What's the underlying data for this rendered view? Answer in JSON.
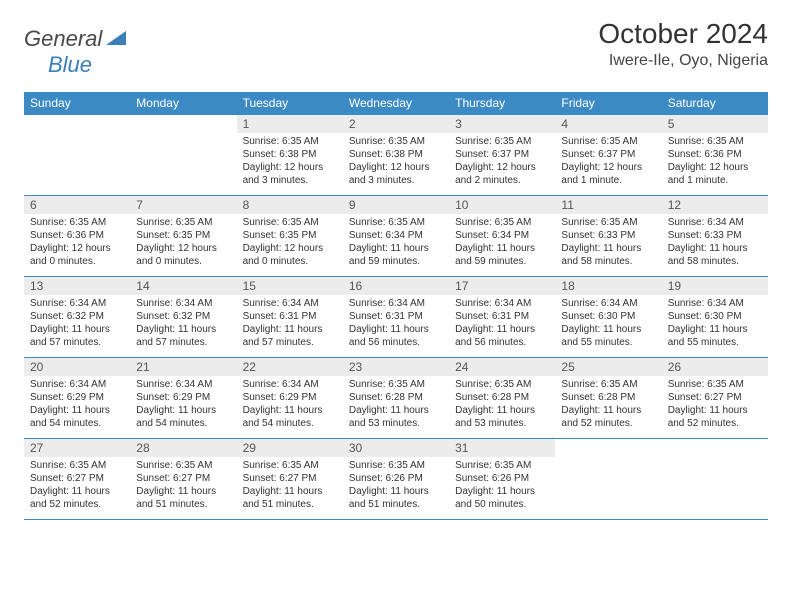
{
  "logo": {
    "general": "General",
    "blue": "Blue"
  },
  "title": "October 2024",
  "location": "Iwere-Ile, Oyo, Nigeria",
  "colors": {
    "header_bg": "#3b8ac4",
    "header_fg": "#ffffff",
    "daynum_bg": "#ececec",
    "sep": "#3b8ac4",
    "logo_gray": "#4a4a4a",
    "logo_blue": "#3b7fb8"
  },
  "dayNames": [
    "Sunday",
    "Monday",
    "Tuesday",
    "Wednesday",
    "Thursday",
    "Friday",
    "Saturday"
  ],
  "weeks": [
    {
      "nums": [
        "",
        "",
        "1",
        "2",
        "3",
        "4",
        "5"
      ],
      "cells": [
        "",
        "",
        "Sunrise: 6:35 AM\nSunset: 6:38 PM\nDaylight: 12 hours and 3 minutes.",
        "Sunrise: 6:35 AM\nSunset: 6:38 PM\nDaylight: 12 hours and 3 minutes.",
        "Sunrise: 6:35 AM\nSunset: 6:37 PM\nDaylight: 12 hours and 2 minutes.",
        "Sunrise: 6:35 AM\nSunset: 6:37 PM\nDaylight: 12 hours and 1 minute.",
        "Sunrise: 6:35 AM\nSunset: 6:36 PM\nDaylight: 12 hours and 1 minute."
      ]
    },
    {
      "nums": [
        "6",
        "7",
        "8",
        "9",
        "10",
        "11",
        "12"
      ],
      "cells": [
        "Sunrise: 6:35 AM\nSunset: 6:36 PM\nDaylight: 12 hours and 0 minutes.",
        "Sunrise: 6:35 AM\nSunset: 6:35 PM\nDaylight: 12 hours and 0 minutes.",
        "Sunrise: 6:35 AM\nSunset: 6:35 PM\nDaylight: 12 hours and 0 minutes.",
        "Sunrise: 6:35 AM\nSunset: 6:34 PM\nDaylight: 11 hours and 59 minutes.",
        "Sunrise: 6:35 AM\nSunset: 6:34 PM\nDaylight: 11 hours and 59 minutes.",
        "Sunrise: 6:35 AM\nSunset: 6:33 PM\nDaylight: 11 hours and 58 minutes.",
        "Sunrise: 6:34 AM\nSunset: 6:33 PM\nDaylight: 11 hours and 58 minutes."
      ]
    },
    {
      "nums": [
        "13",
        "14",
        "15",
        "16",
        "17",
        "18",
        "19"
      ],
      "cells": [
        "Sunrise: 6:34 AM\nSunset: 6:32 PM\nDaylight: 11 hours and 57 minutes.",
        "Sunrise: 6:34 AM\nSunset: 6:32 PM\nDaylight: 11 hours and 57 minutes.",
        "Sunrise: 6:34 AM\nSunset: 6:31 PM\nDaylight: 11 hours and 57 minutes.",
        "Sunrise: 6:34 AM\nSunset: 6:31 PM\nDaylight: 11 hours and 56 minutes.",
        "Sunrise: 6:34 AM\nSunset: 6:31 PM\nDaylight: 11 hours and 56 minutes.",
        "Sunrise: 6:34 AM\nSunset: 6:30 PM\nDaylight: 11 hours and 55 minutes.",
        "Sunrise: 6:34 AM\nSunset: 6:30 PM\nDaylight: 11 hours and 55 minutes."
      ]
    },
    {
      "nums": [
        "20",
        "21",
        "22",
        "23",
        "24",
        "25",
        "26"
      ],
      "cells": [
        "Sunrise: 6:34 AM\nSunset: 6:29 PM\nDaylight: 11 hours and 54 minutes.",
        "Sunrise: 6:34 AM\nSunset: 6:29 PM\nDaylight: 11 hours and 54 minutes.",
        "Sunrise: 6:34 AM\nSunset: 6:29 PM\nDaylight: 11 hours and 54 minutes.",
        "Sunrise: 6:35 AM\nSunset: 6:28 PM\nDaylight: 11 hours and 53 minutes.",
        "Sunrise: 6:35 AM\nSunset: 6:28 PM\nDaylight: 11 hours and 53 minutes.",
        "Sunrise: 6:35 AM\nSunset: 6:28 PM\nDaylight: 11 hours and 52 minutes.",
        "Sunrise: 6:35 AM\nSunset: 6:27 PM\nDaylight: 11 hours and 52 minutes."
      ]
    },
    {
      "nums": [
        "27",
        "28",
        "29",
        "30",
        "31",
        "",
        ""
      ],
      "cells": [
        "Sunrise: 6:35 AM\nSunset: 6:27 PM\nDaylight: 11 hours and 52 minutes.",
        "Sunrise: 6:35 AM\nSunset: 6:27 PM\nDaylight: 11 hours and 51 minutes.",
        "Sunrise: 6:35 AM\nSunset: 6:27 PM\nDaylight: 11 hours and 51 minutes.",
        "Sunrise: 6:35 AM\nSunset: 6:26 PM\nDaylight: 11 hours and 51 minutes.",
        "Sunrise: 6:35 AM\nSunset: 6:26 PM\nDaylight: 11 hours and 50 minutes.",
        "",
        ""
      ]
    }
  ]
}
